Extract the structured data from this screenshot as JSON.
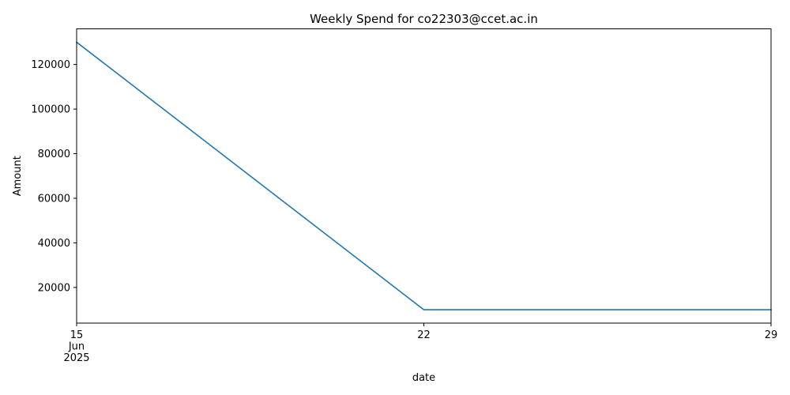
{
  "chart_data": {
    "type": "line",
    "title": "Weekly Spend for co22303@ccet.ac.in",
    "xlabel": "date",
    "ylabel": "Amount",
    "x": [
      "2025-06-15",
      "2025-06-22",
      "2025-06-29"
    ],
    "series": [
      {
        "values": [
          130000,
          10000,
          10000
        ],
        "color": "#1f77b4"
      }
    ],
    "xlim": [
      "2025-06-15",
      "2025-06-29"
    ],
    "ylim": [
      4000,
      136000
    ],
    "yticks": [
      20000,
      40000,
      60000,
      80000,
      100000,
      120000
    ],
    "ytick_labels": [
      "20000",
      "40000",
      "60000",
      "80000",
      "100000",
      "120000"
    ],
    "xticks": [
      {
        "date": "2025-06-15",
        "day": "15",
        "month": "Jun",
        "year": "2025"
      },
      {
        "date": "2025-06-22",
        "day": "22",
        "month": "",
        "year": ""
      },
      {
        "date": "2025-06-29",
        "day": "29",
        "month": "",
        "year": ""
      }
    ],
    "grid": false,
    "legend": "none"
  }
}
